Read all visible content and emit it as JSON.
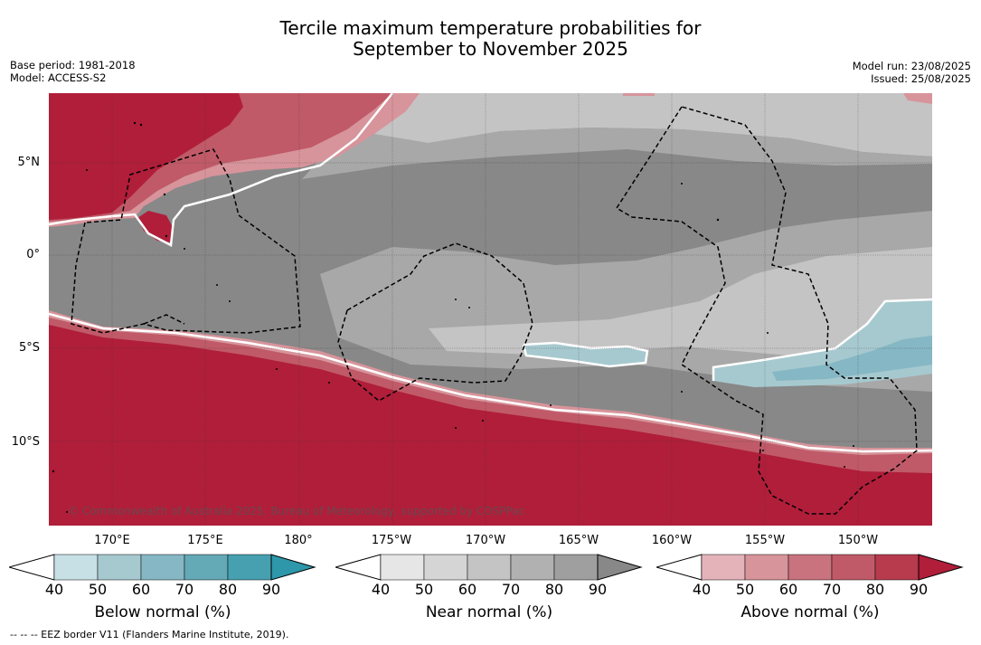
{
  "title_line1": "Tercile maximum temperature probabilities for",
  "title_line2": "September to November 2025",
  "base_period": "Base period: 1981-2018",
  "model": "Model: ACCESS-S2",
  "model_run": "Model run: 23/08/2025",
  "issued": "Issued: 25/08/2025",
  "copyright": "© Commonwealth of Australia 2025, Bureau of Meteorology, supported by COSPPac",
  "footnote": "--  --  -- EEZ border V11 (Flanders Marine Institute, 2019).",
  "lat_labels": [
    "5°N",
    "0°",
    "5°S",
    "10°S"
  ],
  "lon_labels": [
    "170°E",
    "175°E",
    "180°",
    "175°W",
    "170°W",
    "165°W",
    "160°W",
    "155°W",
    "150°W"
  ],
  "colorbars": [
    {
      "title": "Below normal (%)",
      "ticks": [
        "40",
        "50",
        "60",
        "70",
        "80",
        "90"
      ],
      "colors": [
        "#c7e0e6",
        "#a6c9cf",
        "#86b7c4",
        "#64a9b6",
        "#46a0b0",
        "#2e97aa"
      ]
    },
    {
      "title": "Near normal (%)",
      "ticks": [
        "40",
        "50",
        "60",
        "70",
        "80",
        "90"
      ],
      "colors": [
        "#e6e6e6",
        "#d5d5d5",
        "#c4c4c4",
        "#b1b1b1",
        "#9f9f9f",
        "#888888"
      ]
    },
    {
      "title": "Above normal (%)",
      "ticks": [
        "40",
        "50",
        "60",
        "70",
        "80",
        "90"
      ],
      "colors": [
        "#e4b3ba",
        "#d7949b",
        "#c9737e",
        "#c05a68",
        "#b83a4d",
        "#b01e3a"
      ]
    }
  ],
  "map_colors": {
    "above_dark": "#b01e3a",
    "above_mid": "#c05a68",
    "above_light": "#d7949b",
    "near_light": "#c4c4c4",
    "near_mid": "#a8a8a8",
    "near_dark": "#888888",
    "below_light": "#a6c9cf",
    "below_mid": "#86b7c4"
  }
}
